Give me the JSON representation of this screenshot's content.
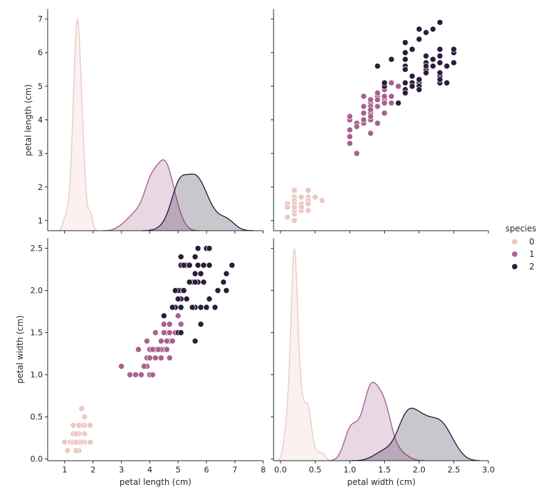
{
  "chart_data": {
    "type": "scatter",
    "title": "",
    "kind": "pairplot",
    "variables": [
      "petal length (cm)",
      "petal width (cm)"
    ],
    "hue": "species",
    "legend": {
      "title": "species",
      "placement": "right",
      "entries": [
        {
          "label": "0",
          "color": "#ebc9c3"
        },
        {
          "label": "1",
          "color": "#a8618f"
        },
        {
          "label": "2",
          "color": "#2c1d3d"
        }
      ]
    },
    "axes": {
      "petal length (cm)": {
        "label": "petal length (cm)",
        "x_range": [
          0.4,
          8.0
        ],
        "x_ticks": [
          1,
          2,
          3,
          4,
          5,
          6,
          7,
          8
        ],
        "y_range": [
          0.7,
          7.3
        ],
        "y_ticks": [
          1,
          2,
          3,
          4,
          5,
          6,
          7
        ]
      },
      "petal width (cm)": {
        "label": "petal width (cm)",
        "x_range": [
          -0.1,
          3.0
        ],
        "x_ticks": [
          "0.0",
          "0.5",
          "1.0",
          "1.5",
          "2.0",
          "2.5",
          "3.0"
        ],
        "y_range": [
          -0.02,
          2.62
        ],
        "y_ticks": [
          "0.0",
          "0.5",
          "1.0",
          "1.5",
          "2.0",
          "2.5"
        ]
      }
    },
    "panels": [
      {
        "position": "top-left",
        "type": "kde",
        "variable": "petal length (cm)"
      },
      {
        "position": "top-right",
        "type": "scatter",
        "x": "petal width (cm)",
        "y": "petal length (cm)"
      },
      {
        "position": "bottom-left",
        "type": "scatter",
        "x": "petal length (cm)",
        "y": "petal width (cm)"
      },
      {
        "position": "bottom-right",
        "type": "kde",
        "variable": "petal width (cm)"
      }
    ],
    "series": [
      {
        "name": "0",
        "petal_length": [
          1.4,
          1.4,
          1.3,
          1.5,
          1.4,
          1.7,
          1.4,
          1.5,
          1.4,
          1.5,
          1.5,
          1.6,
          1.4,
          1.1,
          1.2,
          1.5,
          1.3,
          1.4,
          1.7,
          1.5,
          1.7,
          1.5,
          1.0,
          1.7,
          1.9,
          1.6,
          1.6,
          1.5,
          1.4,
          1.6,
          1.6,
          1.5,
          1.5,
          1.4,
          1.5,
          1.2,
          1.3,
          1.4,
          1.3,
          1.5,
          1.3,
          1.3,
          1.3,
          1.6,
          1.9,
          1.4,
          1.6,
          1.4,
          1.5,
          1.4
        ],
        "petal_width": [
          0.2,
          0.2,
          0.2,
          0.2,
          0.2,
          0.4,
          0.3,
          0.2,
          0.2,
          0.1,
          0.2,
          0.2,
          0.1,
          0.1,
          0.2,
          0.4,
          0.4,
          0.3,
          0.3,
          0.3,
          0.2,
          0.4,
          0.2,
          0.5,
          0.2,
          0.2,
          0.4,
          0.2,
          0.2,
          0.2,
          0.2,
          0.4,
          0.1,
          0.2,
          0.2,
          0.2,
          0.2,
          0.1,
          0.2,
          0.2,
          0.3,
          0.3,
          0.2,
          0.6,
          0.4,
          0.3,
          0.2,
          0.2,
          0.2,
          0.2
        ]
      },
      {
        "name": "1",
        "petal_length": [
          4.7,
          4.5,
          4.9,
          4.0,
          4.6,
          4.5,
          4.7,
          3.3,
          4.6,
          3.9,
          3.5,
          4.2,
          4.0,
          4.7,
          3.6,
          4.4,
          4.5,
          4.1,
          4.5,
          3.9,
          4.8,
          4.0,
          4.9,
          4.7,
          4.3,
          4.4,
          4.8,
          5.0,
          4.5,
          3.5,
          3.8,
          3.7,
          3.9,
          5.1,
          4.5,
          4.5,
          4.7,
          4.4,
          4.1,
          4.0,
          4.4,
          4.6,
          4.0,
          3.3,
          4.2,
          4.2,
          4.2,
          4.3,
          3.0,
          4.1
        ],
        "petal_width": [
          1.4,
          1.5,
          1.5,
          1.3,
          1.5,
          1.3,
          1.6,
          1.0,
          1.3,
          1.4,
          1.0,
          1.5,
          1.0,
          1.4,
          1.3,
          1.4,
          1.5,
          1.0,
          1.5,
          1.1,
          1.8,
          1.3,
          1.5,
          1.2,
          1.3,
          1.4,
          1.4,
          1.7,
          1.5,
          1.0,
          1.1,
          1.0,
          1.2,
          1.6,
          1.5,
          1.6,
          1.5,
          1.3,
          1.3,
          1.3,
          1.2,
          1.4,
          1.2,
          1.0,
          1.3,
          1.2,
          1.3,
          1.3,
          1.1,
          1.3
        ]
      },
      {
        "name": "2",
        "petal_length": [
          6.0,
          5.1,
          5.9,
          5.6,
          5.8,
          6.6,
          4.5,
          6.3,
          5.8,
          6.1,
          5.1,
          5.3,
          5.5,
          5.0,
          5.1,
          5.3,
          5.5,
          6.7,
          6.9,
          5.0,
          5.7,
          4.9,
          6.7,
          4.9,
          5.7,
          6.0,
          4.8,
          4.9,
          5.6,
          5.8,
          6.1,
          6.4,
          5.6,
          5.1,
          5.6,
          6.1,
          5.6,
          5.5,
          4.8,
          5.4,
          5.6,
          5.1,
          5.1,
          5.9,
          5.7,
          5.2,
          5.0,
          5.2,
          5.4,
          5.1
        ],
        "petal_width": [
          2.5,
          1.9,
          2.1,
          1.8,
          2.2,
          2.1,
          1.7,
          1.8,
          1.8,
          2.5,
          2.0,
          1.9,
          2.1,
          2.0,
          2.4,
          2.3,
          1.8,
          2.2,
          2.3,
          1.5,
          2.3,
          2.0,
          2.0,
          1.8,
          2.1,
          1.8,
          1.8,
          1.8,
          2.1,
          1.6,
          1.9,
          2.0,
          2.2,
          1.5,
          1.4,
          2.3,
          2.4,
          1.8,
          1.8,
          2.1,
          2.4,
          2.3,
          1.9,
          2.3,
          2.5,
          2.3,
          1.9,
          2.0,
          2.3,
          1.8
        ]
      }
    ]
  }
}
